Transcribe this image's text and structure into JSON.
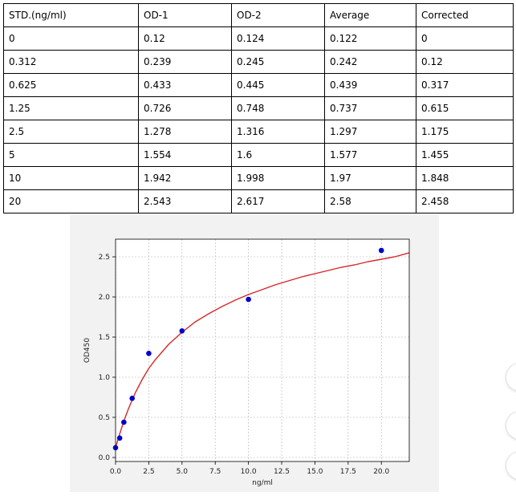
{
  "table": {
    "headers": [
      "STD.(ng/ml)",
      "OD-1",
      "OD-2",
      "Average",
      "Corrected"
    ],
    "rows": [
      [
        "0",
        "0.12",
        "0.124",
        "0.122",
        "0"
      ],
      [
        "0.312",
        "0.239",
        "0.245",
        "0.242",
        "0.12"
      ],
      [
        "0.625",
        "0.433",
        "0.445",
        "0.439",
        "0.317"
      ],
      [
        "1.25",
        "0.726",
        "0.748",
        "0.737",
        "0.615"
      ],
      [
        "2.5",
        "1.278",
        "1.316",
        "1.297",
        "1.175"
      ],
      [
        "5",
        "1.554",
        "1.6",
        "1.577",
        "1.455"
      ],
      [
        "10",
        "1.942",
        "1.998",
        "1.97",
        "1.848"
      ],
      [
        "20",
        "2.543",
        "2.617",
        "2.58",
        "2.458"
      ]
    ]
  },
  "chart_data": {
    "type": "scatter",
    "xlabel": "ng/ml",
    "ylabel": "OD450",
    "xlim": [
      0,
      22.1
    ],
    "ylim": [
      -0.05,
      2.72
    ],
    "xticks": [
      0,
      2.5,
      5,
      7.5,
      10,
      12.5,
      15,
      17.5,
      20
    ],
    "xtick_labels": [
      "0.0",
      "2.5",
      "5.0",
      "7.5",
      "10.0",
      "12.5",
      "15.0",
      "17.5",
      "20.0"
    ],
    "yticks": [
      0,
      0.5,
      1.0,
      1.5,
      2.0,
      2.5
    ],
    "ytick_labels": [
      "0.0",
      "0.5",
      "1.0",
      "1.5",
      "2.0",
      "2.5"
    ],
    "grid": true,
    "points": {
      "x": [
        0,
        0.312,
        0.625,
        1.25,
        2.5,
        5,
        10,
        20
      ],
      "y": [
        0.122,
        0.242,
        0.439,
        0.737,
        1.297,
        1.577,
        1.97,
        2.58
      ],
      "color": "#0000cc"
    },
    "fit_curve": {
      "x": [
        0,
        0.25,
        0.5,
        0.75,
        1,
        1.5,
        2,
        2.5,
        3,
        4,
        5,
        6,
        7,
        8,
        9,
        10,
        11,
        12,
        13,
        14,
        15,
        16,
        17,
        18,
        19,
        20,
        21,
        22.1
      ],
      "y": [
        0.12,
        0.26,
        0.39,
        0.51,
        0.62,
        0.81,
        0.97,
        1.11,
        1.22,
        1.41,
        1.56,
        1.69,
        1.79,
        1.88,
        1.96,
        2.03,
        2.09,
        2.15,
        2.2,
        2.25,
        2.29,
        2.33,
        2.37,
        2.4,
        2.44,
        2.47,
        2.5,
        2.55
      ],
      "color": "#d62728"
    }
  }
}
